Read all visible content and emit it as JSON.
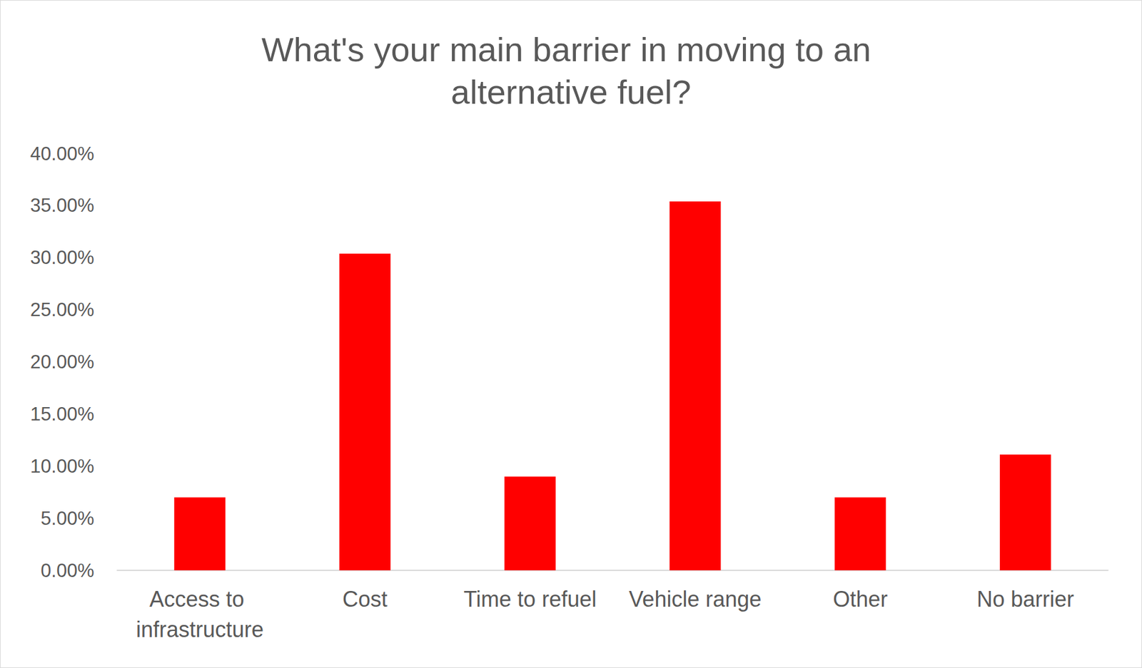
{
  "chart_data": {
    "type": "bar",
    "title": "What's your main barrier in moving to an alternative fuel?",
    "categories": [
      "Access to infrastructure",
      "Cost",
      "Time to refuel",
      "Vehicle range",
      "Other",
      "No barrier"
    ],
    "values": [
      7.0,
      30.4,
      9.0,
      35.4,
      7.0,
      11.1
    ],
    "color": "#ff0000",
    "ylim": [
      0,
      40
    ],
    "yticks": [
      {
        "value": 0,
        "label": "0.00%"
      },
      {
        "value": 5,
        "label": "5.00%"
      },
      {
        "value": 10,
        "label": "10.00%"
      },
      {
        "value": 15,
        "label": "15.00%"
      },
      {
        "value": 20,
        "label": "20.00%"
      },
      {
        "value": 25,
        "label": "25.00%"
      },
      {
        "value": 30,
        "label": "30.00%"
      },
      {
        "value": 35,
        "label": "35.00%"
      },
      {
        "value": 40,
        "label": "40.00%"
      }
    ],
    "grid": false,
    "data_labels": false
  }
}
